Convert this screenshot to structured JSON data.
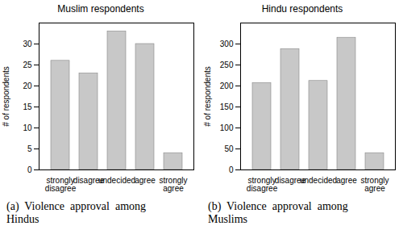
{
  "chart_data": [
    {
      "type": "bar",
      "title": "Muslim respondents",
      "categories": [
        "strongly\ndisagree",
        "disagree",
        "undecided",
        "agree",
        "strongly\nagree"
      ],
      "values": [
        26,
        23,
        33,
        30,
        4
      ],
      "color": "#c8c8c8",
      "ylabel": "# of respondents",
      "ylim": [
        0,
        35
      ],
      "yticks": [
        0,
        5,
        10,
        15,
        20,
        25,
        30
      ],
      "grid": false,
      "caption": "(a)  Violence  approval  among\nHindus"
    },
    {
      "type": "bar",
      "title": "Hindu respondents",
      "categories": [
        "strongly\ndisagree",
        "disagree",
        "undecided",
        "agree",
        "strongly\nagree"
      ],
      "values": [
        207,
        288,
        212,
        315,
        40
      ],
      "color": "#c8c8c8",
      "ylabel": "# of respondents",
      "ylim": [
        0,
        350
      ],
      "yticks": [
        0,
        50,
        100,
        150,
        200,
        250,
        300
      ],
      "grid": false,
      "caption": "(b)  Violence  approval  among\nMuslims"
    }
  ]
}
